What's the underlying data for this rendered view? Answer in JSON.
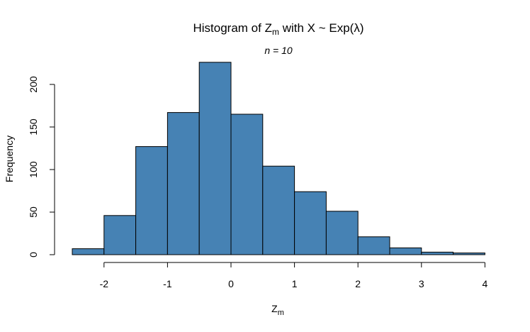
{
  "chart_data": {
    "type": "histogram",
    "title_main": "Histogram of Z",
    "title_sub": "m",
    "title_rest": " with X ~ Exp(λ)",
    "subtitle": "n = 10",
    "xlabel_main": "Z",
    "xlabel_sub": "m",
    "ylabel": "Frequency",
    "bin_width": 0.5,
    "bins": [
      {
        "x0": -2.5,
        "x1": -2.0,
        "count": 7
      },
      {
        "x0": -2.0,
        "x1": -1.5,
        "count": 46
      },
      {
        "x0": -1.5,
        "x1": -1.0,
        "count": 127
      },
      {
        "x0": -1.0,
        "x1": -0.5,
        "count": 167
      },
      {
        "x0": -0.5,
        "x1": 0.0,
        "count": 226
      },
      {
        "x0": 0.0,
        "x1": 0.5,
        "count": 165
      },
      {
        "x0": 0.5,
        "x1": 1.0,
        "count": 104
      },
      {
        "x0": 1.0,
        "x1": 1.5,
        "count": 74
      },
      {
        "x0": 1.5,
        "x1": 2.0,
        "count": 51
      },
      {
        "x0": 2.0,
        "x1": 2.5,
        "count": 21
      },
      {
        "x0": 2.5,
        "x1": 3.0,
        "count": 8
      },
      {
        "x0": 3.0,
        "x1": 3.5,
        "count": 3
      },
      {
        "x0": 3.5,
        "x1": 4.0,
        "count": 2
      }
    ],
    "x_ticks": [
      -2,
      -1,
      0,
      1,
      2,
      3,
      4
    ],
    "x_tick_labels": [
      "-2",
      "-1",
      "0",
      "1",
      "2",
      "3",
      "4"
    ],
    "y_ticks": [
      0,
      50,
      100,
      150,
      200
    ],
    "y_tick_labels": [
      "0",
      "50",
      "100",
      "150",
      "200"
    ],
    "xlim": [
      -2.5,
      4.0
    ],
    "ylim": [
      0,
      226
    ],
    "grid": false,
    "legend": "none",
    "colors": {
      "bar_fill": "#4682B4",
      "bar_stroke": "#000000"
    }
  }
}
